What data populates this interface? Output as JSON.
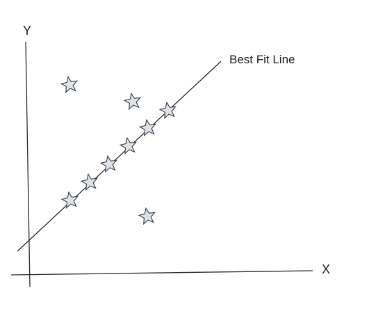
{
  "labels": {
    "y_axis": "Y",
    "x_axis": "X",
    "best_fit_line": "Best Fit Line"
  },
  "colors": {
    "axis": "#2b2b2b",
    "line": "#1a1a1a",
    "star_fill": "#dde3eb",
    "star_stroke": "#3a3a3a",
    "text": "#222222"
  },
  "icons": {
    "data_point": "star-icon"
  }
}
